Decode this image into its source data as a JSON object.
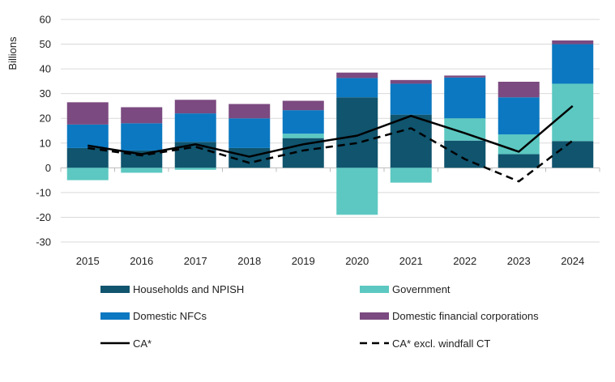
{
  "chart_data": {
    "type": "bar",
    "stacked": true,
    "ylabel": "Billions",
    "ylim": [
      -30,
      60
    ],
    "yticks": [
      -30,
      -20,
      -10,
      0,
      10,
      20,
      30,
      40,
      50,
      60
    ],
    "categories": [
      "2015",
      "2016",
      "2017",
      "2018",
      "2019",
      "2020",
      "2021",
      "2022",
      "2023",
      "2024"
    ],
    "series": [
      {
        "name": "Households and NPISH",
        "color": "#10546e",
        "values": [
          8.0,
          7.0,
          10.5,
          8.0,
          12.0,
          28.5,
          21.5,
          11.0,
          5.5,
          10.8
        ]
      },
      {
        "name": "Government",
        "color": "#5cc8c1",
        "values": [
          -5.0,
          -2.0,
          -0.8,
          0.0,
          1.8,
          -19.0,
          -6.0,
          9.0,
          8.0,
          23.2
        ]
      },
      {
        "name": "Domestic NFCs",
        "color": "#0b78c1",
        "values": [
          9.5,
          11.0,
          11.5,
          12.0,
          9.5,
          7.8,
          12.5,
          16.5,
          15.0,
          16.0
        ]
      },
      {
        "name": "Domestic financial corporations",
        "color": "#7b4a80",
        "values": [
          9.0,
          6.5,
          5.5,
          5.8,
          3.8,
          2.2,
          1.5,
          0.8,
          6.3,
          1.5
        ]
      }
    ],
    "lines": [
      {
        "name": "CA*",
        "style": "solid",
        "color": "#000000",
        "values": [
          9.0,
          5.5,
          9.5,
          4.5,
          9.5,
          13.0,
          21.0,
          14.0,
          6.5,
          25.0
        ]
      },
      {
        "name": "CA* excl. windfall CT",
        "style": "dashed",
        "color": "#000000",
        "values": [
          8.0,
          5.0,
          8.5,
          2.0,
          7.0,
          10.0,
          16.0,
          3.5,
          -5.5,
          11.0
        ]
      }
    ],
    "gridlines": true,
    "legend_position": "bottom"
  }
}
